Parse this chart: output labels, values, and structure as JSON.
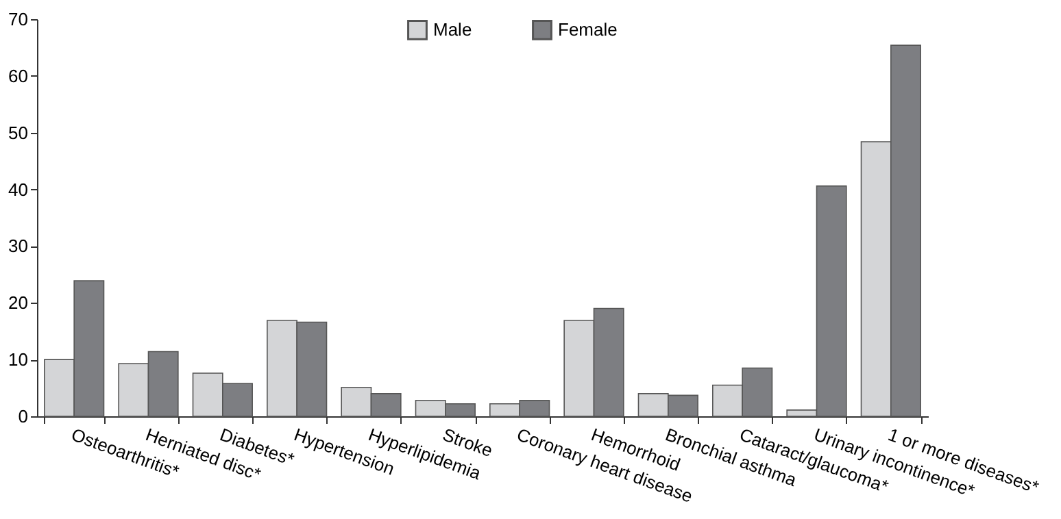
{
  "chart_data": {
    "type": "bar",
    "categories": [
      "Osteoarthritis*",
      "Herniated disc*",
      "Diabetes*",
      "Hypertension",
      "Hyperlipidemia",
      "Stroke",
      "Coronary heart disease",
      "Hemorrhoid",
      "Bronchial asthma",
      "Cataract/glaucoma*",
      "Urinary incontinence*",
      "1 or more diseases*"
    ],
    "series": [
      {
        "name": "Male",
        "color": "#d4d5d7",
        "values": [
          10.0,
          9.3,
          7.6,
          16.9,
          5.1,
          2.8,
          2.2,
          16.9,
          4.0,
          5.5,
          1.1,
          48.4
        ]
      },
      {
        "name": "Female",
        "color": "#7d7e82",
        "values": [
          23.9,
          11.4,
          5.8,
          16.6,
          4.0,
          2.2,
          2.8,
          19.0,
          3.7,
          8.5,
          40.6,
          65.4
        ]
      }
    ],
    "ylim": [
      0,
      70
    ],
    "yticks": [
      0,
      10,
      20,
      30,
      40,
      50,
      60,
      70
    ],
    "grid": false,
    "legend": "top"
  }
}
